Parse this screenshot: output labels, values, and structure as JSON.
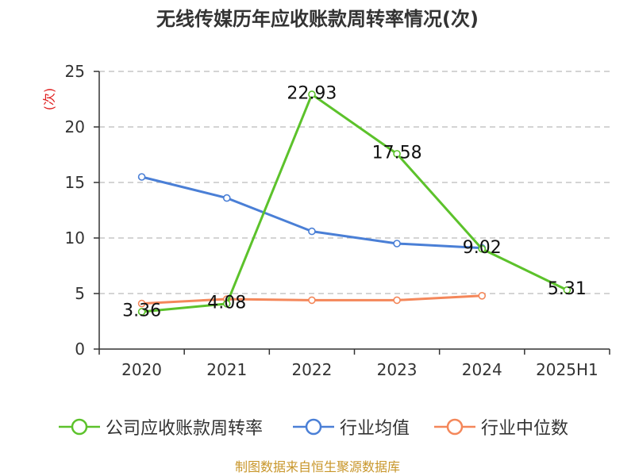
{
  "source": "制图数据来自恒生聚源数据库",
  "colors": {
    "title": "#333333",
    "grid": "#bbbbbb",
    "axis": "#333333",
    "ylabel": "#e02020",
    "source": "#c8962a"
  },
  "chart_data": {
    "type": "line",
    "title": "无线传媒历年应收账款周转率情况(次)",
    "xlabel": "",
    "ylabel": "(次)",
    "ylim": [
      0,
      25
    ],
    "yticks": [
      0,
      5,
      10,
      15,
      20,
      25
    ],
    "grid": true,
    "legend_position": "bottom",
    "categories": [
      "2020",
      "2021",
      "2022",
      "2023",
      "2024",
      "2025H1"
    ],
    "series": [
      {
        "name": "公司应收账款周转率",
        "color": "#5cc22b",
        "data_labels": true,
        "values": [
          3.36,
          4.08,
          22.93,
          17.58,
          9.02,
          5.31
        ]
      },
      {
        "name": "行业均值",
        "color": "#4a7fd6",
        "data_labels": false,
        "values": [
          15.5,
          13.6,
          10.6,
          9.5,
          9.1,
          null
        ]
      },
      {
        "name": "行业中位数",
        "color": "#f4875a",
        "data_labels": false,
        "values": [
          4.1,
          4.5,
          4.4,
          4.4,
          4.8,
          null
        ]
      }
    ]
  }
}
